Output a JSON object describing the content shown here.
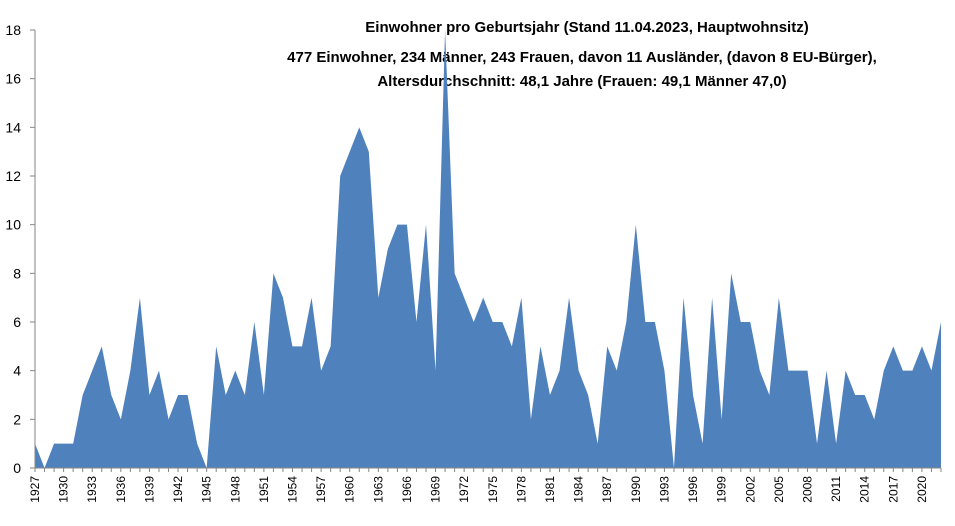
{
  "chart_data": {
    "type": "area",
    "title_lines": [
      "Einwohner pro Geburtsjahr (Stand 11.04.2023, Hauptwohnsitz)",
      "477 Einwohner, 234 Männer, 243 Frauen, davon 11 Ausländer, (davon 8 EU-Bürger),",
      "Altersdurchschnitt: 48,1 Jahre (Frauen: 49,1  Männer 47,0)"
    ],
    "xlabel": "",
    "ylabel": "",
    "ylim": [
      0,
      18
    ],
    "yticks": [
      0,
      2,
      4,
      6,
      8,
      10,
      12,
      14,
      16,
      18
    ],
    "grid": false,
    "legend": "none",
    "color": "#4F81BD",
    "x_tick_labels": [
      "1927",
      "1930",
      "1933",
      "1936",
      "1939",
      "1942",
      "1945",
      "1948",
      "1951",
      "1954",
      "1957",
      "1960",
      "1963",
      "1966",
      "1969",
      "1972",
      "1975",
      "1978",
      "1981",
      "1984",
      "1987",
      "1990",
      "1993",
      "1996",
      "1999",
      "2002",
      "2005",
      "2008",
      "2011",
      "2014",
      "2017",
      "2020"
    ],
    "x": [
      1927,
      1928,
      1929,
      1930,
      1931,
      1932,
      1933,
      1934,
      1935,
      1936,
      1937,
      1938,
      1939,
      1940,
      1941,
      1942,
      1943,
      1944,
      1945,
      1946,
      1947,
      1948,
      1949,
      1950,
      1951,
      1952,
      1953,
      1954,
      1955,
      1956,
      1957,
      1958,
      1959,
      1960,
      1961,
      1962,
      1963,
      1964,
      1965,
      1966,
      1967,
      1968,
      1969,
      1970,
      1971,
      1972,
      1973,
      1974,
      1975,
      1976,
      1977,
      1978,
      1979,
      1980,
      1981,
      1982,
      1983,
      1984,
      1985,
      1986,
      1987,
      1988,
      1989,
      1990,
      1991,
      1992,
      1993,
      1994,
      1995,
      1996,
      1997,
      1998,
      1999,
      2000,
      2001,
      2002,
      2003,
      2004,
      2005,
      2006,
      2007,
      2008,
      2009,
      2010,
      2011,
      2012,
      2013,
      2014,
      2015,
      2016,
      2017,
      2018,
      2019,
      2020,
      2021,
      2022
    ],
    "values": [
      1,
      0,
      1,
      1,
      1,
      3,
      4,
      5,
      3,
      2,
      4,
      7,
      3,
      4,
      2,
      3,
      3,
      1,
      0,
      5,
      3,
      4,
      3,
      6,
      3,
      8,
      7,
      5,
      5,
      7,
      4,
      5,
      12,
      13,
      14,
      13,
      7,
      9,
      10,
      10,
      6,
      10,
      4,
      18,
      8,
      7,
      6,
      7,
      6,
      6,
      5,
      7,
      2,
      5,
      3,
      4,
      7,
      4,
      3,
      1,
      5,
      4,
      6,
      10,
      6,
      6,
      4,
      0,
      7,
      3,
      1,
      7,
      2,
      8,
      6,
      6,
      4,
      3,
      7,
      4,
      4,
      4,
      1,
      4,
      1,
      4,
      3,
      3,
      2,
      4,
      5,
      4,
      4,
      5,
      4,
      6
    ]
  }
}
